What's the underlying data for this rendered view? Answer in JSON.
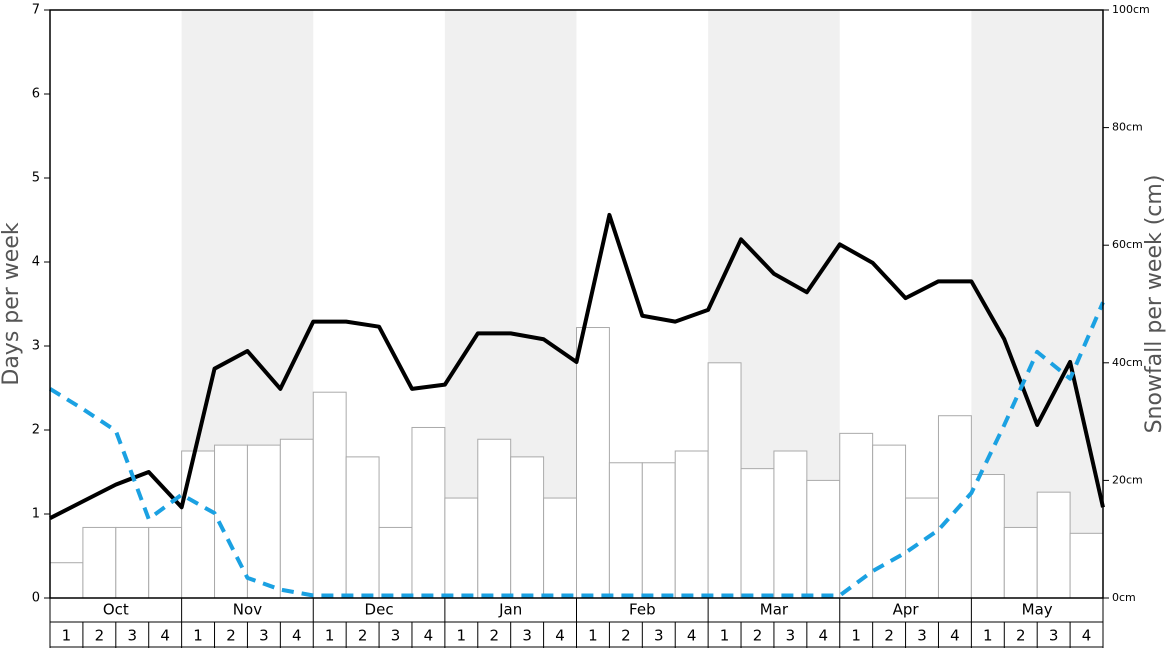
{
  "chart_data": {
    "type": "bar",
    "y_label": "Days per week",
    "y2_label": "Snowfall per week (cm)",
    "months": [
      "Oct",
      "Nov",
      "Dec",
      "Jan",
      "Feb",
      "Mar",
      "Apr",
      "May"
    ],
    "categories": [
      "1",
      "2",
      "3",
      "4",
      "1",
      "2",
      "3",
      "4",
      "1",
      "2",
      "3",
      "4",
      "1",
      "2",
      "3",
      "4",
      "1",
      "2",
      "3",
      "4",
      "1",
      "2",
      "3",
      "4",
      "1",
      "2",
      "3",
      "4",
      "1",
      "2",
      "3",
      "4"
    ],
    "x": [
      0,
      1,
      2,
      3,
      4,
      5,
      6,
      7,
      8,
      9,
      10,
      11,
      12,
      13,
      14,
      15,
      16,
      17,
      18,
      19,
      20,
      21,
      22,
      23,
      24,
      25,
      26,
      27,
      28,
      29,
      30,
      31,
      32
    ],
    "xlim": [
      0,
      32
    ],
    "ylim": [
      0,
      7
    ],
    "yticks": [
      0,
      1,
      2,
      3,
      4,
      5,
      6,
      7
    ],
    "y2lim": [
      0,
      100
    ],
    "y2ticks": [
      {
        "value": 0,
        "label": "0cm"
      },
      {
        "value": 20,
        "label": "20cm"
      },
      {
        "value": 40,
        "label": "40cm"
      },
      {
        "value": 60,
        "label": "60cm"
      },
      {
        "value": 80,
        "label": "80cm"
      },
      {
        "value": 100,
        "label": "100cm"
      }
    ],
    "shade_color": "#f0f0f0",
    "series": [
      {
        "type": "bar",
        "axis": "y2",
        "color": "#ffffff",
        "values": [
          6,
          12,
          12,
          12,
          25,
          26,
          26,
          27,
          35,
          24,
          12,
          29,
          17,
          27,
          24,
          17,
          46,
          23,
          23,
          25,
          40,
          22,
          25,
          20,
          28,
          26,
          17,
          31,
          21,
          12,
          18,
          11
        ]
      },
      {
        "type": "line",
        "color": "#000000",
        "values": [
          0.95,
          1.15,
          1.35,
          1.5,
          1.08,
          2.73,
          2.94,
          2.49,
          3.29,
          3.29,
          3.23,
          2.49,
          2.54,
          3.15,
          3.15,
          3.08,
          2.81,
          4.56,
          3.36,
          3.29,
          3.43,
          4.27,
          3.86,
          3.64,
          4.21,
          3.99,
          3.57,
          3.77,
          3.77,
          3.08,
          2.06,
          2.81,
          1.08
        ]
      },
      {
        "type": "line",
        "color": "#1ba1e2",
        "dashed": true,
        "values": [
          2.49,
          2.25,
          1.99,
          0.94,
          1.23,
          1.01,
          0.24,
          0.1,
          0.03,
          0.03,
          0.03,
          0.03,
          0.03,
          0.03,
          0.03,
          0.03,
          0.03,
          0.03,
          0.03,
          0.03,
          0.03,
          0.03,
          0.03,
          0.03,
          0.03,
          0.32,
          0.54,
          0.81,
          1.25,
          2.06,
          2.93,
          2.61,
          3.52
        ]
      }
    ]
  }
}
